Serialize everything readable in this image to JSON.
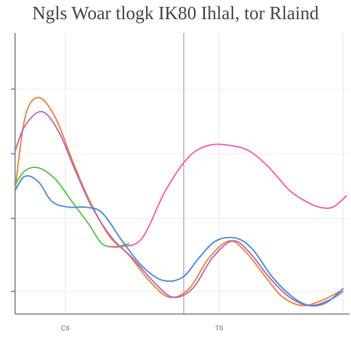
{
  "chart_data": {
    "type": "line",
    "title": "Ngls Woar tlogk IK80 Ihlal, tor Rlaind",
    "subtitle": "",
    "xlabel": "",
    "ylabel": "",
    "xlim": [
      0,
      100
    ],
    "ylim": [
      0,
      100
    ],
    "grid": true,
    "x_ticks": [
      {
        "value": 0,
        "label": ""
      },
      {
        "value": 15,
        "label": "C6"
      },
      {
        "value": 61,
        "label": "T6"
      },
      {
        "value": 98,
        "label": ""
      }
    ],
    "y_ticks": [
      {
        "value": 80,
        "label": ""
      },
      {
        "value": 57,
        "label": ""
      },
      {
        "value": 34,
        "label": ""
      },
      {
        "value": 8,
        "label": ""
      }
    ],
    "series": [
      {
        "name": "",
        "color": "#e8843e",
        "x": [
          0,
          3,
          7,
          12,
          17,
          22,
          28,
          34,
          40,
          46,
          52,
          58,
          64,
          69,
          75,
          80,
          86,
          92,
          97
        ],
        "y": [
          44,
          70,
          77,
          70,
          55,
          41,
          28,
          21,
          12,
          6,
          9,
          20,
          26,
          22,
          13,
          6,
          3,
          5,
          8
        ]
      },
      {
        "name": "",
        "color": "#b965b3",
        "x": [
          0,
          3,
          8,
          13,
          18,
          23,
          29,
          35,
          41,
          47,
          53,
          59,
          65,
          70,
          76,
          82,
          88,
          94,
          98
        ],
        "y": [
          58,
          67,
          72,
          65,
          51,
          38,
          27,
          20,
          12,
          6,
          9,
          20,
          26,
          22,
          13,
          6,
          3,
          5,
          8
        ]
      },
      {
        "name": "",
        "color": "#55c24a",
        "x": [
          0,
          3,
          7,
          12,
          17,
          22,
          26,
          30,
          34
        ],
        "y": [
          46,
          51,
          52,
          48,
          40,
          32,
          25,
          24,
          25
        ]
      },
      {
        "name": "",
        "color": "#4a8ad0",
        "x": [
          0,
          3,
          7,
          11,
          16,
          21,
          26,
          32,
          38,
          44,
          50,
          55,
          60,
          66,
          71,
          77,
          83,
          88,
          93,
          98
        ],
        "y": [
          44,
          49,
          47,
          40,
          38,
          38,
          36,
          26,
          17,
          12,
          13,
          20,
          26,
          27,
          23,
          13,
          6,
          3,
          4,
          9
        ]
      },
      {
        "name": "",
        "color": "#ee5fa6",
        "x": [
          28,
          32,
          38,
          45,
          52,
          58,
          64,
          70,
          76,
          82,
          87,
          91,
          95,
          99
        ],
        "y": [
          24,
          24,
          27,
          44,
          56,
          60,
          60,
          58,
          52,
          44,
          40,
          38,
          38,
          42
        ]
      }
    ]
  }
}
